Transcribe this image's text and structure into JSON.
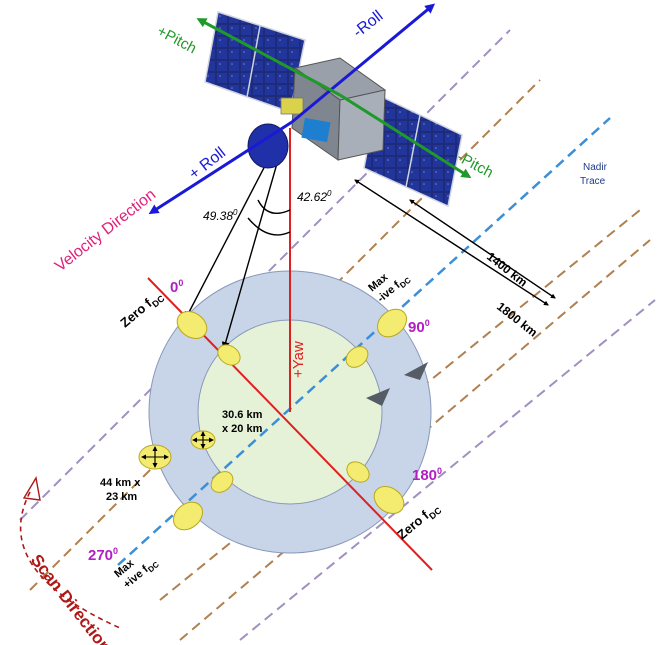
{
  "labels": {
    "roll_minus": "-Roll",
    "roll_plus": "+ Roll",
    "pitch_plus": "+Pitch",
    "pitch_minus": "-Pitch",
    "velocity_direction": "Velocity Direction",
    "angle_left": "49.38",
    "angle_right": "42.62",
    "degree_sup": "0",
    "nadir_line1": "Nadir",
    "nadir_line2": "Trace",
    "dist_1400": "1400 km",
    "dist_1800": "1800 km",
    "yaw": "+Yaw",
    "deg0": "0",
    "deg90": "90",
    "deg180": "180",
    "deg270": "270",
    "zero_fdc_left": "Zero f",
    "zero_fdc_right": "Zero f",
    "fdc_sub": "DC",
    "max_top": "Max",
    "ive_top": "-ive f",
    "max_bottom": "Max",
    "ive_bottom": "+ive f",
    "inner_fp_line1": "30.6 km",
    "inner_fp_line2": "x 20 km",
    "outer_fp_line1": "44 km x",
    "outer_fp_line2": "23 km",
    "scan_direction": "Scan Direction"
  },
  "colors": {
    "roll": "#1a1ad6",
    "pitch": "#1f9a2a",
    "velocity": "#e0207a",
    "yaw": "#e02020",
    "nadir": "#3a8fd8",
    "track_brown": "#b08050",
    "track_purple": "#a090c0",
    "degree": "#b020c0",
    "scan": "#b01818",
    "outer_ring": "#c8d4e8",
    "inner_disk": "#e6f2d8",
    "footprint": "#f4ec70"
  }
}
